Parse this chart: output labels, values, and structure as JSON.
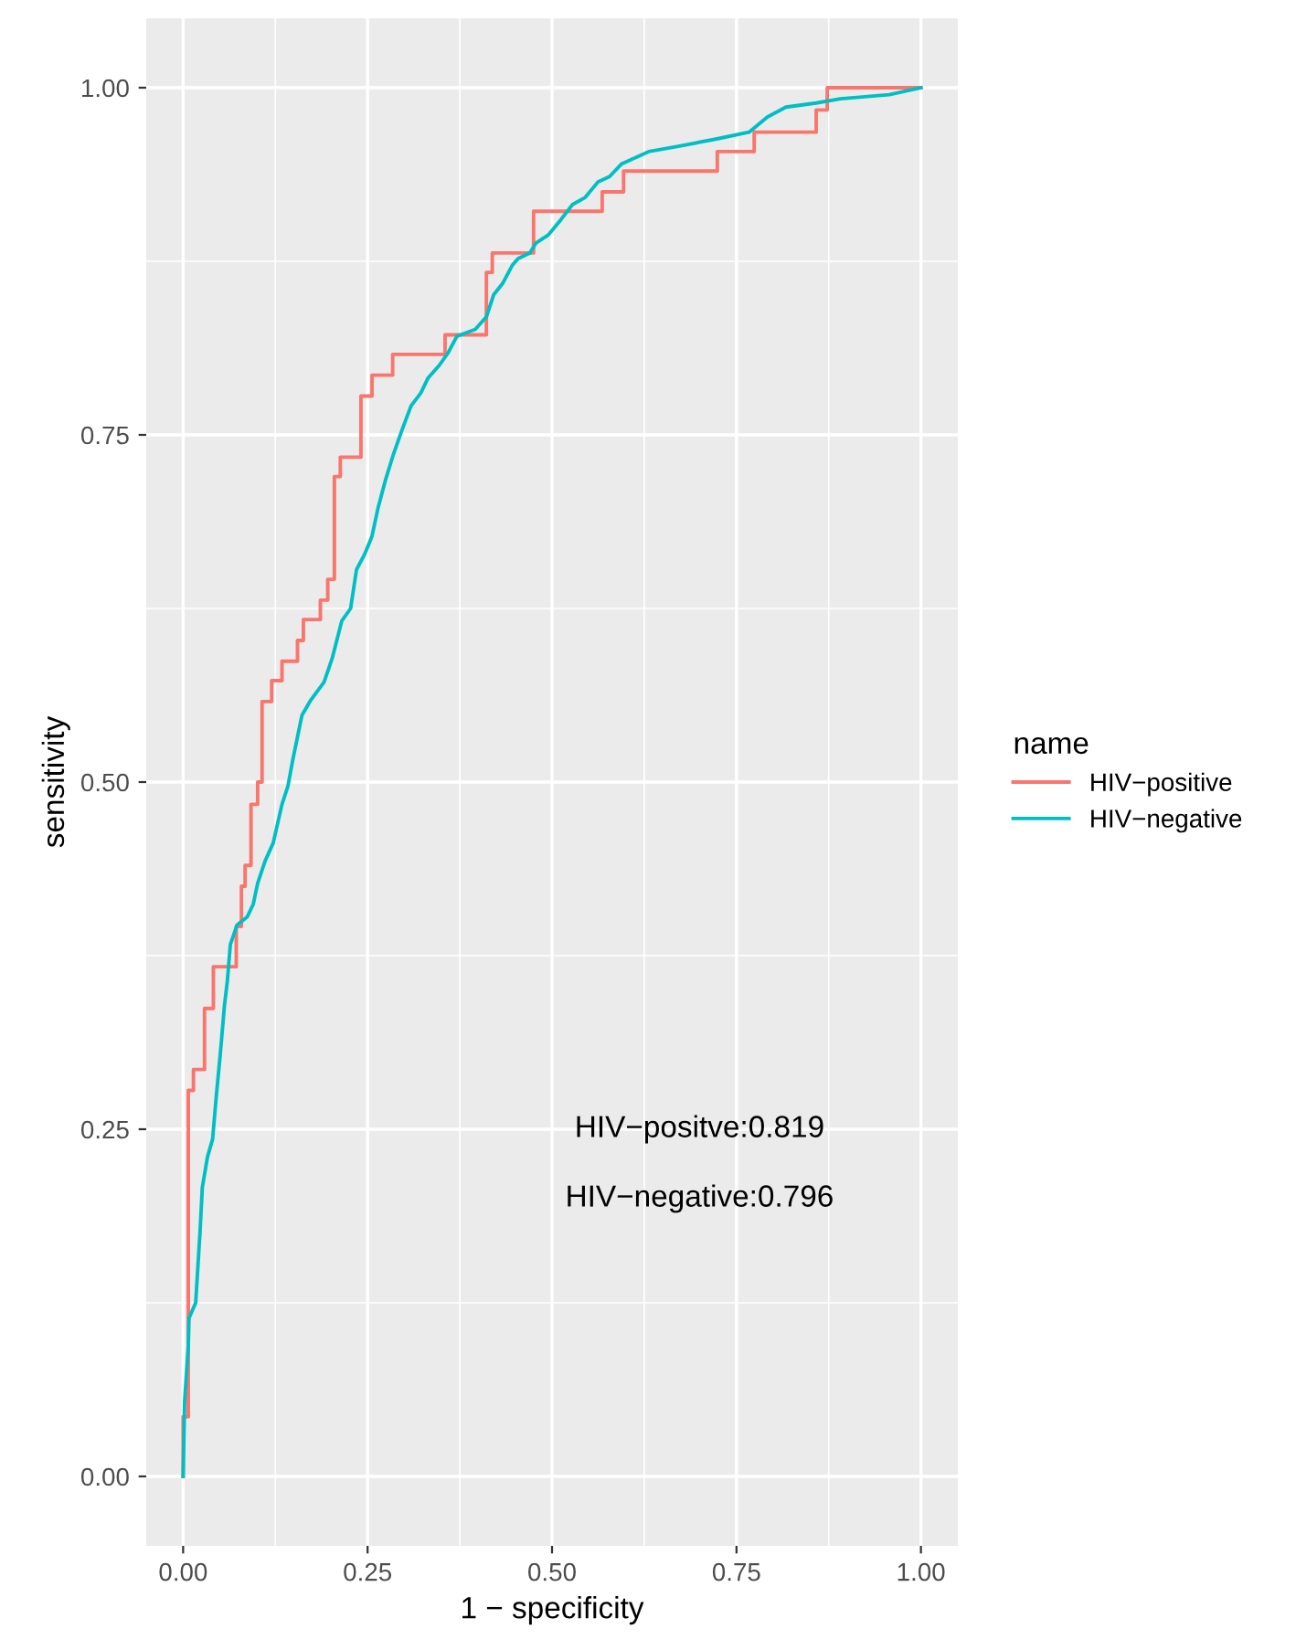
{
  "chart_data": {
    "type": "line",
    "xlabel": "1 − specificity",
    "ylabel": "sensitivity",
    "legend_title": "name",
    "xlim": [
      -0.05,
      1.05
    ],
    "ylim": [
      -0.05,
      1.05
    ],
    "xticks": [
      {
        "value": 0,
        "label": "0.00"
      },
      {
        "value": 0.25,
        "label": "0.25"
      },
      {
        "value": 0.5,
        "label": "0.50"
      },
      {
        "value": 0.75,
        "label": "0.75"
      },
      {
        "value": 1,
        "label": "1.00"
      }
    ],
    "yticks": [
      {
        "value": 0,
        "label": "0.00"
      },
      {
        "value": 0.25,
        "label": "0.25"
      },
      {
        "value": 0.5,
        "label": "0.50"
      },
      {
        "value": 0.75,
        "label": "0.75"
      },
      {
        "value": 1,
        "label": "1.00"
      }
    ],
    "grid": true,
    "legend": "right",
    "line_style": "solid",
    "marker": "none",
    "annotations": [
      "HIV−positve:0.819",
      "HIV−negative:0.796"
    ],
    "series": [
      {
        "name": "HIV−positive",
        "type": "step",
        "color": "#f8766d",
        "x": [
          0,
          0,
          0.007,
          0.014,
          0.029,
          0.041,
          0.072,
          0.079,
          0.084,
          0.092,
          0.101,
          0.107,
          0.12,
          0.134,
          0.155,
          0.163,
          0.186,
          0.196,
          0.205,
          0.213,
          0.241,
          0.256,
          0.284,
          0.355,
          0.411,
          0.419,
          0.475,
          0.568,
          0.597,
          0.724,
          0.774,
          0.858,
          0.873,
          1.0
        ],
        "values": [
          0,
          0.043,
          0.278,
          0.293,
          0.337,
          0.367,
          0.396,
          0.425,
          0.44,
          0.484,
          0.5,
          0.558,
          0.573,
          0.587,
          0.602,
          0.617,
          0.631,
          0.646,
          0.72,
          0.734,
          0.778,
          0.793,
          0.808,
          0.822,
          0.867,
          0.881,
          0.911,
          0.925,
          0.94,
          0.954,
          0.968,
          0.984,
          1.0,
          1.0
        ]
      },
      {
        "name": "HIV−negative",
        "color": "#00bfc4",
        "x": [
          0,
          0.002,
          0.007,
          0.008,
          0.017,
          0.023,
          0.026,
          0.033,
          0.04,
          0.045,
          0.05,
          0.056,
          0.06,
          0.064,
          0.073,
          0.087,
          0.095,
          0.101,
          0.111,
          0.122,
          0.134,
          0.142,
          0.149,
          0.161,
          0.173,
          0.191,
          0.202,
          0.215,
          0.227,
          0.235,
          0.246,
          0.256,
          0.264,
          0.274,
          0.285,
          0.297,
          0.309,
          0.322,
          0.332,
          0.347,
          0.359,
          0.371,
          0.396,
          0.411,
          0.421,
          0.433,
          0.446,
          0.454,
          0.47,
          0.478,
          0.495,
          0.512,
          0.528,
          0.545,
          0.562,
          0.578,
          0.594,
          0.631,
          0.673,
          0.722,
          0.767,
          0.792,
          0.817,
          0.858,
          0.891,
          0.957,
          1.0
        ],
        "values": [
          0,
          0.054,
          0.094,
          0.114,
          0.125,
          0.177,
          0.208,
          0.23,
          0.243,
          0.274,
          0.302,
          0.339,
          0.357,
          0.383,
          0.397,
          0.403,
          0.412,
          0.427,
          0.443,
          0.456,
          0.484,
          0.497,
          0.517,
          0.548,
          0.559,
          0.572,
          0.589,
          0.616,
          0.625,
          0.653,
          0.664,
          0.677,
          0.697,
          0.717,
          0.736,
          0.754,
          0.771,
          0.78,
          0.791,
          0.8,
          0.809,
          0.821,
          0.826,
          0.835,
          0.851,
          0.859,
          0.872,
          0.877,
          0.881,
          0.888,
          0.894,
          0.905,
          0.916,
          0.921,
          0.932,
          0.936,
          0.945,
          0.954,
          0.958,
          0.963,
          0.968,
          0.979,
          0.986,
          0.989,
          0.992,
          0.995,
          1.0
        ]
      }
    ]
  }
}
